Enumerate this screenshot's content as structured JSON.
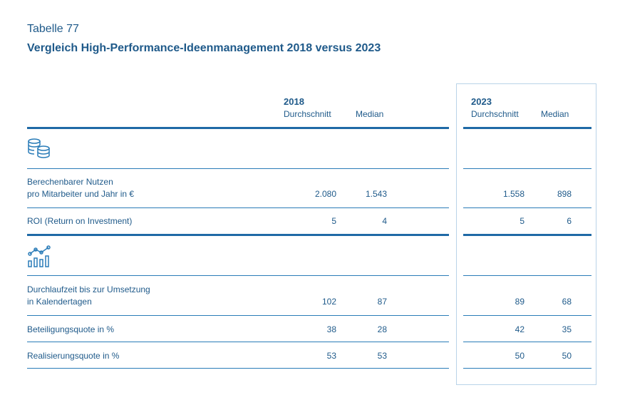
{
  "kicker": "Tabelle 77",
  "title": "Vergleich High-Performance-Ideenmanagement 2018 versus 2023",
  "columns": {
    "y2018": {
      "year": "2018",
      "avg": "Durchschnitt",
      "median": "Median"
    },
    "y2023": {
      "year": "2023",
      "avg": "Durchschnitt",
      "median": "Median"
    }
  },
  "icons": {
    "group1": "coins-stack-icon",
    "group2": "bar-line-chart-icon"
  },
  "rows": [
    {
      "label1": "Berechenbarer Nutzen",
      "label2": "pro Mitarbeiter und Jahr in €",
      "a18": "2.080",
      "m18": "1.543",
      "a23": "1.558",
      "m23": "898"
    },
    {
      "label1": "ROI (Return on Investment)",
      "a18": "5",
      "m18": "4",
      "a23": "5",
      "m23": "6"
    },
    {
      "label1": "Durchlaufzeit bis zur Umsetzung",
      "label2": "in Kalendertagen",
      "a18": "102",
      "m18": "87",
      "a23": "89",
      "m23": "68"
    },
    {
      "label1": "Beteiligungsquote in %",
      "a18": "38",
      "m18": "28",
      "a23": "42",
      "m23": "35"
    },
    {
      "label1": "Realisierungsquote in %",
      "a18": "53",
      "m18": "53",
      "a23": "50",
      "m23": "50"
    }
  ]
}
